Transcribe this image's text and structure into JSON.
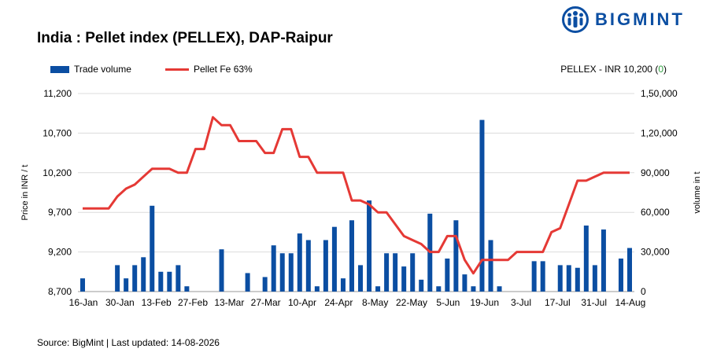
{
  "brand": {
    "name": "BIGMINT",
    "color": "#0b4ea2",
    "icon": "bigmint-logo-icon"
  },
  "title": "India : Pellet index (PELLEX), DAP-Raipur",
  "index_note": {
    "prefix": "PELLEX - INR 10,200 (",
    "change": "0",
    "suffix": ")"
  },
  "source": "Source: BigMint | Last updated: 14-08-2026",
  "chart_data": {
    "type": "bar+line",
    "xlabel": "",
    "ylabel": "Price in INR / t",
    "y2label": "volume in t",
    "ylim": [
      8700,
      11200
    ],
    "y2lim": [
      0,
      150000
    ],
    "yticks": [
      "11,200",
      "10,700",
      "10,200",
      "9,700",
      "9,200",
      "8,700"
    ],
    "y2ticks": [
      "1,50,000",
      "1,20,000",
      "90,000",
      "60,000",
      "30,000",
      "0"
    ],
    "xtick_labels": [
      "16-Jan",
      "30-Jan",
      "13-Feb",
      "27-Feb",
      "13-Mar",
      "27-Mar",
      "10-Apr",
      "24-Apr",
      "8-May",
      "22-May",
      "5-Jun",
      "19-Jun",
      "3-Jul",
      "17-Jul",
      "31-Jul",
      "14-Aug"
    ],
    "grid": true,
    "legend_position": "top-left",
    "colors": {
      "volume": "#0b4ea2",
      "price": "#e53935"
    },
    "series": [
      {
        "name": "Trade volume",
        "kind": "bar",
        "axis": "right",
        "values": [
          10000,
          0,
          0,
          0,
          20000,
          10000,
          20000,
          26000,
          65000,
          15000,
          15000,
          20000,
          4000,
          0,
          0,
          0,
          32000,
          0,
          0,
          14000,
          0,
          11000,
          35000,
          29000,
          29000,
          44000,
          39000,
          4000,
          39000,
          49000,
          10000,
          54000,
          20000,
          69000,
          4000,
          29000,
          29000,
          19000,
          29000,
          9000,
          59000,
          4000,
          25000,
          54000,
          13000,
          4000,
          130000,
          39000,
          4000,
          0,
          0,
          0,
          23000,
          23000,
          0,
          20000,
          20000,
          18000,
          50000,
          20000,
          47000,
          0,
          25000,
          33000
        ]
      },
      {
        "name": "Pellet Fe 63%",
        "kind": "line",
        "axis": "left",
        "values": [
          9750,
          9750,
          9750,
          9750,
          9900,
          10000,
          10050,
          10150,
          10250,
          10250,
          10250,
          10200,
          10200,
          10500,
          10500,
          10900,
          10800,
          10800,
          10600,
          10600,
          10600,
          10450,
          10450,
          10750,
          10750,
          10400,
          10400,
          10200,
          10200,
          10200,
          10200,
          9850,
          9850,
          9800,
          9700,
          9700,
          9550,
          9400,
          9350,
          9300,
          9200,
          9200,
          9400,
          9400,
          9100,
          8930,
          9100,
          9100,
          9100,
          9100,
          9200,
          9200,
          9200,
          9200,
          9450,
          9500,
          9800,
          10100,
          10100,
          10150,
          10200,
          10200,
          10200,
          10200
        ]
      }
    ]
  }
}
